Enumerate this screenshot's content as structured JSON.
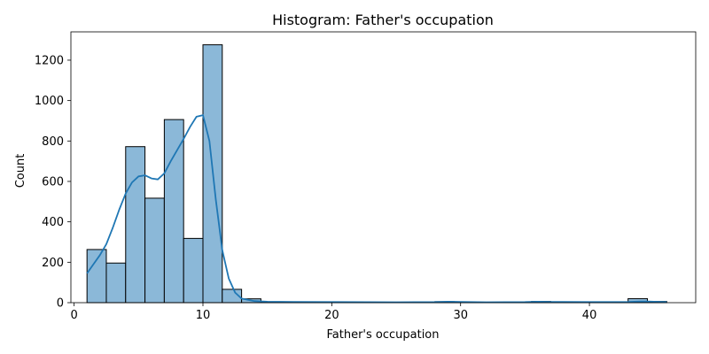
{
  "chart_data": {
    "type": "bar",
    "title": "Histogram: Father's occupation",
    "xlabel": "Father's occupation",
    "ylabel": "Count",
    "xlim": [
      -0.25,
      48.25
    ],
    "ylim": [
      0,
      1340
    ],
    "xticks": [
      0,
      10,
      20,
      30,
      40
    ],
    "yticks": [
      0,
      200,
      400,
      600,
      800,
      1000,
      1200
    ],
    "grid": false,
    "legend": "none",
    "bar_color": "#8bb8d8",
    "edge_color": "#000000",
    "kde_color": "#1f77b4",
    "bins": [
      {
        "x0": 1.0,
        "x1": 2.5,
        "count": 263
      },
      {
        "x0": 2.5,
        "x1": 4.0,
        "count": 196
      },
      {
        "x0": 4.0,
        "x1": 5.5,
        "count": 772
      },
      {
        "x0": 5.5,
        "x1": 7.0,
        "count": 517
      },
      {
        "x0": 7.0,
        "x1": 8.5,
        "count": 906
      },
      {
        "x0": 8.5,
        "x1": 10.0,
        "count": 318
      },
      {
        "x0": 10.0,
        "x1": 11.5,
        "count": 1276
      },
      {
        "x0": 11.5,
        "x1": 13.0,
        "count": 66
      },
      {
        "x0": 13.0,
        "x1": 14.5,
        "count": 19
      },
      {
        "x0": 14.5,
        "x1": 16.0,
        "count": 4
      },
      {
        "x0": 16.0,
        "x1": 17.5,
        "count": 2
      },
      {
        "x0": 17.5,
        "x1": 19.0,
        "count": 3
      },
      {
        "x0": 19.0,
        "x1": 20.5,
        "count": 1
      },
      {
        "x0": 20.5,
        "x1": 22.0,
        "count": 1
      },
      {
        "x0": 22.0,
        "x1": 23.5,
        "count": 1
      },
      {
        "x0": 23.5,
        "x1": 25.0,
        "count": 1
      },
      {
        "x0": 25.0,
        "x1": 26.5,
        "count": 1
      },
      {
        "x0": 26.5,
        "x1": 28.0,
        "count": 2
      },
      {
        "x0": 28.0,
        "x1": 29.5,
        "count": 5
      },
      {
        "x0": 29.5,
        "x1": 31.0,
        "count": 3
      },
      {
        "x0": 31.0,
        "x1": 32.5,
        "count": 1
      },
      {
        "x0": 32.5,
        "x1": 34.0,
        "count": 1
      },
      {
        "x0": 34.0,
        "x1": 35.5,
        "count": 4
      },
      {
        "x0": 35.5,
        "x1": 37.0,
        "count": 6
      },
      {
        "x0": 37.0,
        "x1": 38.5,
        "count": 3
      },
      {
        "x0": 38.5,
        "x1": 40.0,
        "count": 2
      },
      {
        "x0": 40.0,
        "x1": 41.5,
        "count": 3
      },
      {
        "x0": 41.5,
        "x1": 43.0,
        "count": 4
      },
      {
        "x0": 43.0,
        "x1": 44.5,
        "count": 20
      },
      {
        "x0": 44.5,
        "x1": 46.0,
        "count": 6
      }
    ],
    "kde": {
      "x": [
        1,
        1.5,
        2,
        2.5,
        3,
        3.5,
        4,
        4.5,
        5,
        5.5,
        6,
        6.5,
        7,
        7.5,
        8,
        8.5,
        9,
        9.5,
        10,
        10.5,
        11,
        11.5,
        12,
        12.5,
        13,
        14,
        15,
        17,
        20,
        25,
        28,
        29,
        30,
        32,
        35,
        36,
        37,
        40,
        43,
        44,
        44.5,
        45,
        46
      ],
      "y": [
        145,
        190,
        235,
        290,
        370,
        460,
        540,
        595,
        625,
        630,
        615,
        610,
        640,
        700,
        755,
        810,
        870,
        920,
        928,
        800,
        510,
        260,
        120,
        50,
        20,
        8,
        5,
        4,
        3,
        2,
        3,
        5,
        4,
        2,
        3,
        5,
        4,
        3,
        4,
        6,
        6,
        5,
        3
      ]
    }
  }
}
